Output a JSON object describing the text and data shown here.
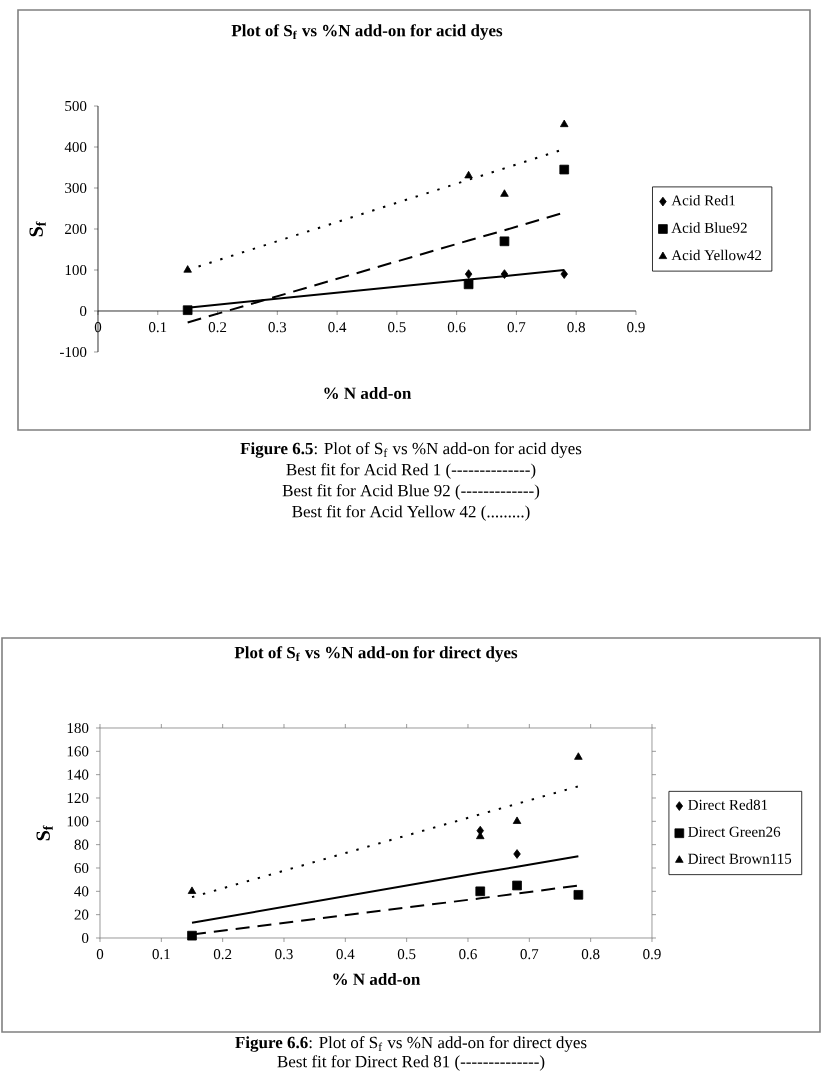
{
  "chart_data": [
    {
      "type": "scatter",
      "title": "Plot of S$_{f}$ vs %N add-on for acid dyes",
      "xlabel": "% N add-on",
      "ylabel": "S$_{f}$",
      "x": [
        0.15,
        0.62,
        0.68,
        0.78
      ],
      "series": [
        {
          "name": "Acid Red1",
          "marker": "diamond",
          "color": "#000000",
          "values": [
            null,
            90,
            90,
            90
          ]
        },
        {
          "name": "Acid Blue92",
          "marker": "square",
          "color": "#000000",
          "values": [
            2,
            65,
            170,
            345
          ]
        },
        {
          "name": "Acid Yellow42",
          "marker": "triangle",
          "color": "#000000",
          "values": [
            100,
            330,
            285,
            455
          ]
        },
        {
          "type": "line",
          "values": [
            8,
            77,
            85,
            100
          ],
          "line_style": "solid",
          "color": "#000000"
        },
        {
          "type": "line",
          "values": [
            -28,
            172,
            197,
            240
          ],
          "line_style": "dashed",
          "color": "#000000"
        },
        {
          "type": "line",
          "values": [
            100,
            320,
            348,
            395
          ],
          "line_style": "dotted",
          "color": "#000000"
        }
      ],
      "xlim": [
        0,
        0.9
      ],
      "ylim": [
        -100,
        500
      ],
      "xticks": [
        0,
        0.1,
        0.2,
        0.3,
        0.4,
        0.5,
        0.6,
        0.7,
        0.8,
        0.9
      ],
      "yticks": [
        -100,
        0,
        100,
        200,
        300,
        400,
        500
      ],
      "legend": "right",
      "annotations": [
        "**Figure 6.5**: Plot of S$_{f}$ vs %N add-on for acid dyes",
        "Best fit for Acid Red 1 (--------------)",
        "Best fit for Acid Blue 92 (-------------)",
        "Best fit for Acid Yellow 42 (.........)"
      ]
    },
    {
      "type": "scatter",
      "title": "Plot of S$_{f}$ vs %N add-on for direct dyes",
      "xlabel": "% N add-on",
      "ylabel": "S$_{f}$",
      "x": [
        0.15,
        0.62,
        0.68,
        0.78
      ],
      "series": [
        {
          "name": "Direct Red81",
          "marker": "diamond",
          "color": "#000000",
          "values": [
            null,
            92,
            72,
            null
          ]
        },
        {
          "name": "Direct Green26",
          "marker": "square",
          "color": "#000000",
          "values": [
            2,
            40,
            45,
            37
          ]
        },
        {
          "name": "Direct Brown115",
          "marker": "triangle",
          "color": "#000000",
          "values": [
            40,
            87,
            100,
            155
          ]
        },
        {
          "type": "line",
          "values": [
            13,
            56,
            61,
            70
          ],
          "line_style": "solid",
          "color": "#000000"
        },
        {
          "type": "line",
          "values": [
            3,
            34,
            38,
            45
          ],
          "line_style": "dashed",
          "color": "#000000"
        },
        {
          "type": "line",
          "values": [
            35,
            106,
            115,
            130
          ],
          "line_style": "dotted",
          "color": "#000000"
        }
      ],
      "xlim": [
        0,
        0.9
      ],
      "ylim": [
        0,
        180
      ],
      "xticks": [
        0,
        0.1,
        0.2,
        0.3,
        0.4,
        0.5,
        0.6,
        0.7,
        0.8,
        0.9
      ],
      "yticks": [
        0,
        20,
        40,
        60,
        80,
        100,
        120,
        140,
        160,
        180
      ],
      "legend": "right",
      "annotations": [
        "**Figure 6.6**: Plot of S$_{f}$ vs %N add-on for direct dyes",
        "Best fit for Direct Red 81 (--------------)"
      ]
    }
  ]
}
